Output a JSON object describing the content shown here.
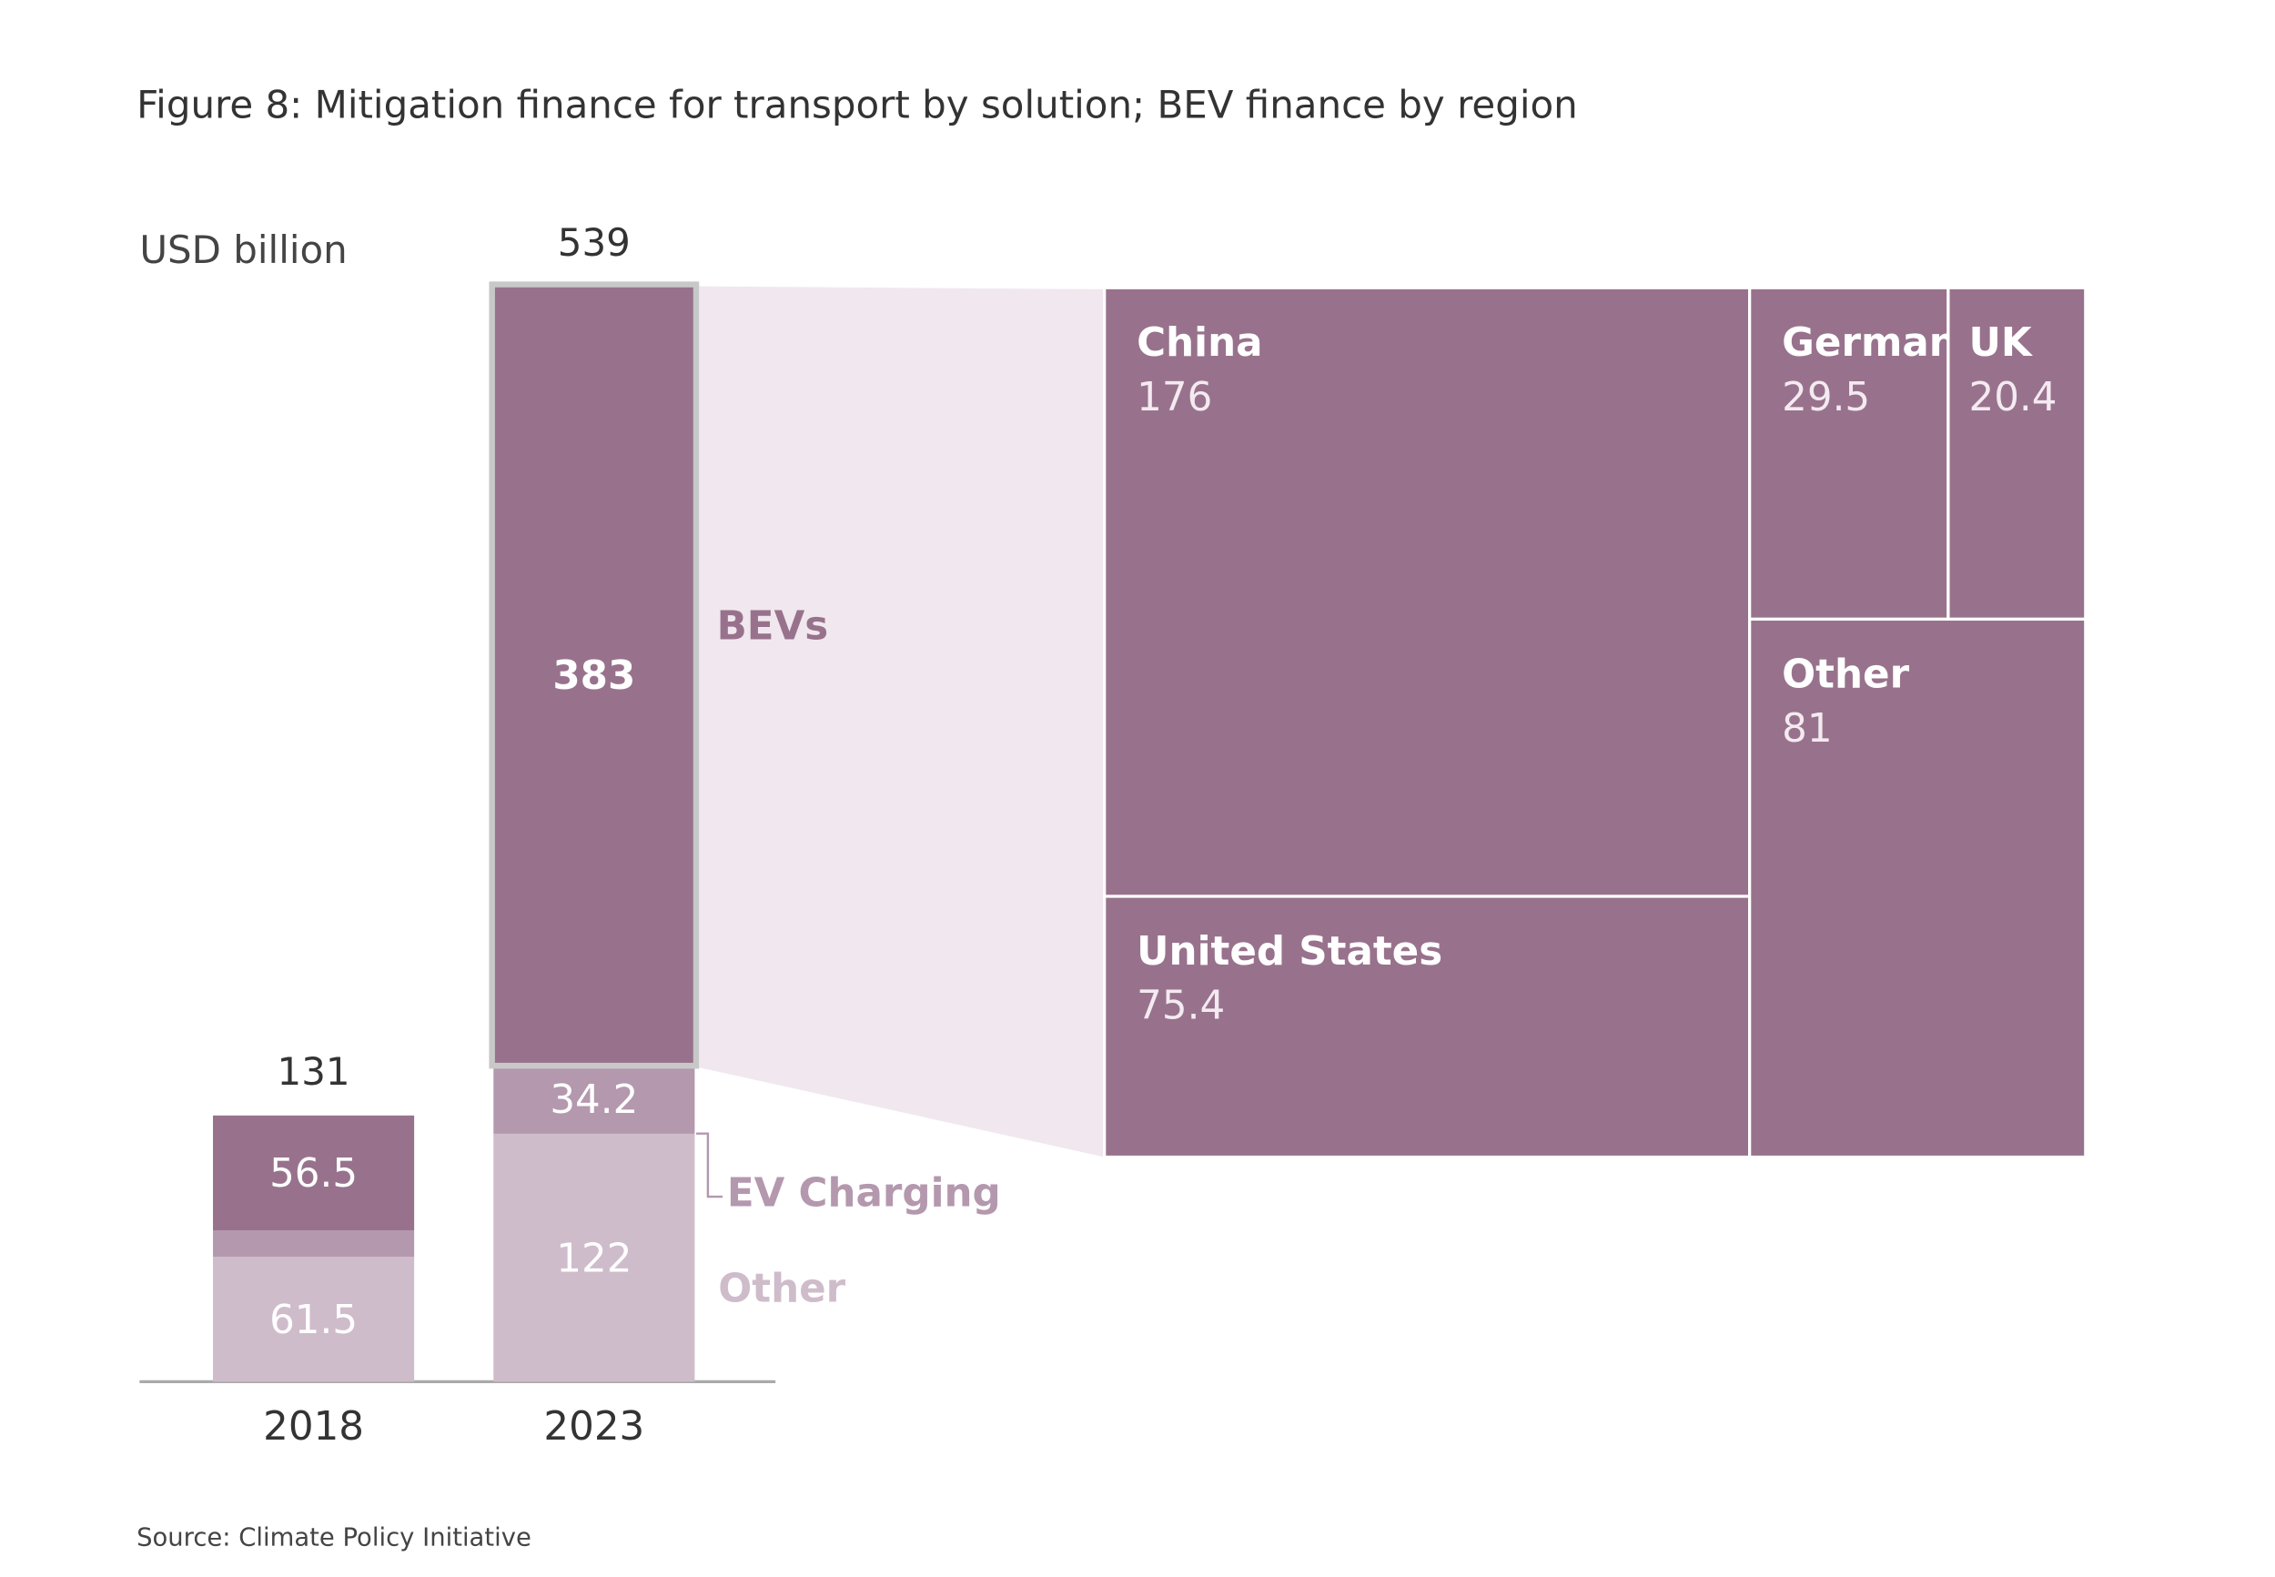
{
  "title": "Figure 8: Mitigation finance for transport by solution; BEV finance by region",
  "source": "Source: Climate Policy Initiative",
  "chart_data": [
    {
      "type": "stacked_bar",
      "y_label": "USD billion",
      "categories": [
        "2018",
        "2023"
      ],
      "ylim": [
        0,
        539
      ],
      "totals": [
        131,
        539
      ],
      "series": [
        {
          "name": "Other",
          "color": "#cfbccb",
          "values": [
            61.5,
            122
          ]
        },
        {
          "name": "EV Charging",
          "color": "#b498ae",
          "values": [
            13,
            34.2
          ],
          "value_labels": [
            null,
            "34.2"
          ]
        },
        {
          "name": "BEVs",
          "color": "#98728c",
          "values": [
            56.5,
            383
          ]
        }
      ]
    },
    {
      "type": "treemap",
      "color": "#98728c",
      "items": [
        {
          "name": "China",
          "value": 176
        },
        {
          "name": "Germany",
          "value": 29.5
        },
        {
          "name": "UK",
          "value": 20.4
        },
        {
          "name": "United States",
          "value": 75.4
        },
        {
          "name": "Other",
          "value": 81
        }
      ]
    }
  ]
}
